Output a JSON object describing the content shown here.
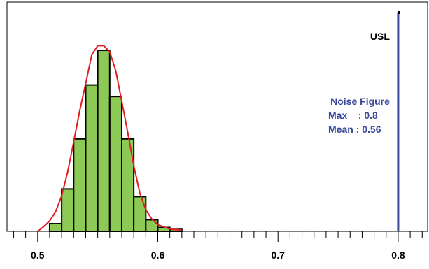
{
  "chart_data": {
    "type": "bar",
    "xlim": [
      0.4745,
      0.8245
    ],
    "ylim": [
      0,
      51
    ],
    "bin_width": 0.01,
    "bins": [
      {
        "start": 0.51,
        "count": 2
      },
      {
        "start": 0.52,
        "count": 11
      },
      {
        "start": 0.53,
        "count": 24
      },
      {
        "start": 0.54,
        "count": 38
      },
      {
        "start": 0.55,
        "count": 47
      },
      {
        "start": 0.56,
        "count": 35
      },
      {
        "start": 0.57,
        "count": 24
      },
      {
        "start": 0.58,
        "count": 9
      },
      {
        "start": 0.59,
        "count": 3
      },
      {
        "start": 0.6,
        "count": 1
      },
      {
        "start": 0.61,
        "count": 0.5
      }
    ],
    "fit_curve": {
      "x": [
        0.5,
        0.505,
        0.51,
        0.515,
        0.52,
        0.525,
        0.53,
        0.535,
        0.54,
        0.545,
        0.55,
        0.555,
        0.56,
        0.565,
        0.57,
        0.575,
        0.58,
        0.585,
        0.59,
        0.595,
        0.6,
        0.61,
        0.62
      ],
      "y": [
        0,
        1.2,
        2.7,
        5.1,
        9.2,
        15.4,
        23.2,
        31.3,
        38.4,
        45.8,
        48.2,
        48.2,
        46.6,
        41.7,
        33.8,
        25.6,
        17.0,
        10.0,
        5.6,
        3.2,
        1.7,
        0.6,
        0.3
      ]
    },
    "x_ticks": [
      0.5,
      0.6,
      0.7,
      0.8
    ],
    "x_tick_labels": [
      "0.5",
      "0.6",
      "0.7",
      "0.8"
    ],
    "minor_tick_step": 0.01,
    "usl": {
      "value": 0.8,
      "label": "USL"
    },
    "annotation": {
      "title": "Noise Figure",
      "lines": [
        "Max    : 0.8",
        "Mean : 0.56"
      ]
    },
    "grid": false,
    "colors": {
      "bar_fill": "#8cc955",
      "bar_stroke": "#000000",
      "fit_line": "#e02020",
      "usl_line": "#3a4a9a",
      "annotation_text": "#3a4a9a"
    }
  }
}
